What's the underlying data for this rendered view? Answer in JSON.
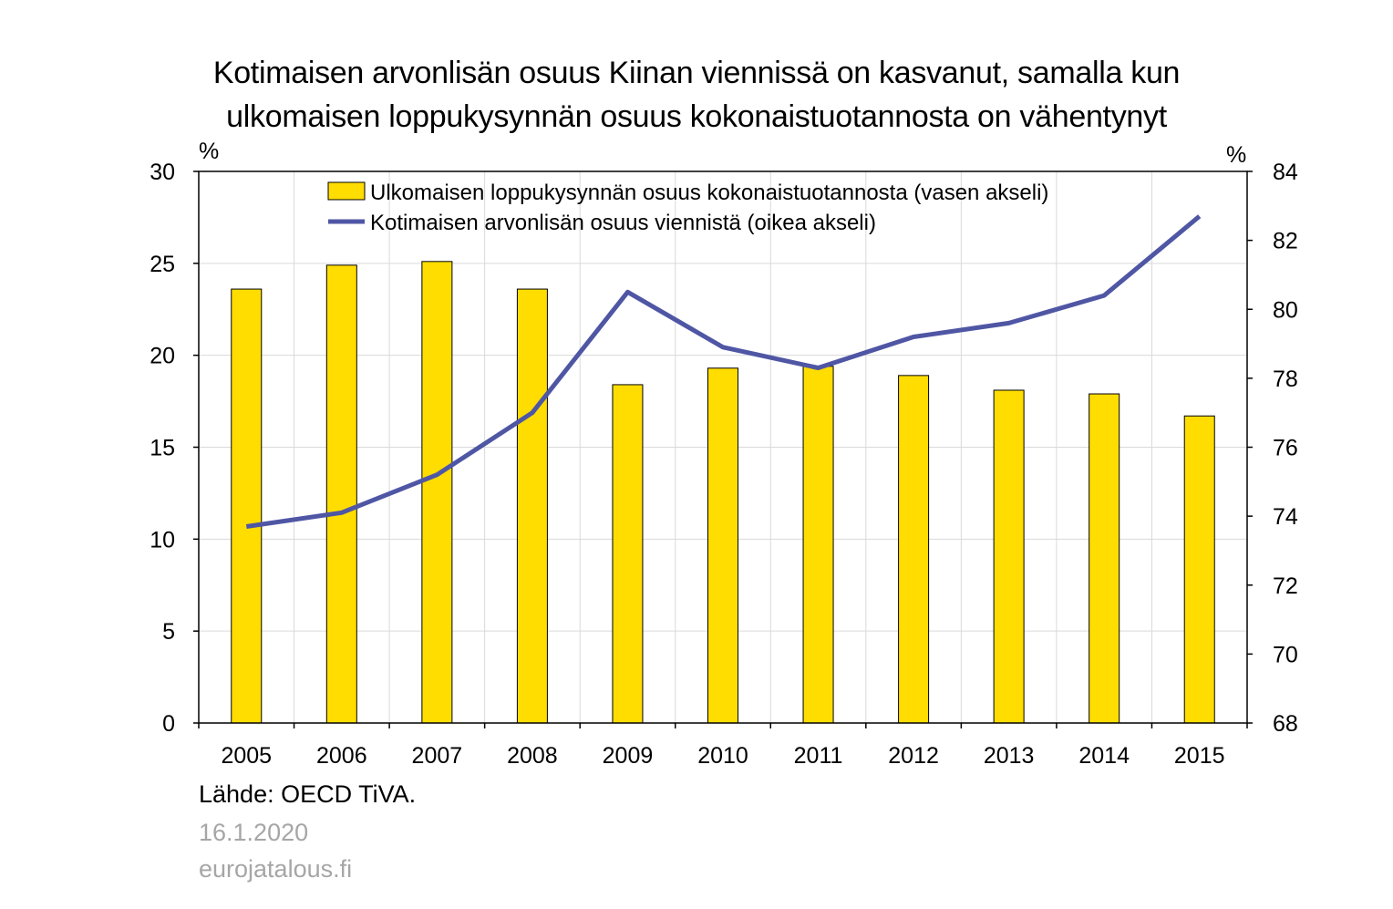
{
  "title": {
    "line1": "Kotimaisen arvonlisän osuus Kiinan viennissä on kasvanut, samalla kun",
    "line2": "ulkomaisen loppukysynnän osuus kokonaistuotannosta on vähentynyt"
  },
  "axis_units": {
    "left": "%",
    "right": "%"
  },
  "footer": {
    "source": "Lähde: OECD TiVA.",
    "date": "16.1.2020",
    "site": "eurojatalous.fi"
  },
  "colors": {
    "bar": "#ffdd00",
    "bar_border": "#000000",
    "line": "#4f56a4",
    "grid": "#d9d9d9"
  },
  "chart_data": {
    "type": "bar+line",
    "categories": [
      "2005",
      "2006",
      "2007",
      "2008",
      "2009",
      "2010",
      "2011",
      "2012",
      "2013",
      "2014",
      "2015"
    ],
    "series": [
      {
        "name": "Ulkomaisen loppukysynnän osuus kokonaistuotannosta (vasen akseli)",
        "type": "bar",
        "axis": "left",
        "values": [
          23.6,
          24.9,
          25.1,
          23.6,
          18.4,
          19.3,
          19.4,
          18.9,
          18.1,
          17.9,
          16.7
        ]
      },
      {
        "name": "Kotimaisen arvonlisän osuus viennistä (oikea akseli)",
        "type": "line",
        "axis": "right",
        "values": [
          73.7,
          74.1,
          75.2,
          77.0,
          80.5,
          78.9,
          78.3,
          79.2,
          79.6,
          80.4,
          82.7
        ]
      }
    ],
    "y_left": {
      "min": 0,
      "max": 30,
      "ticks": [
        0,
        5,
        10,
        15,
        20,
        25,
        30
      ]
    },
    "y_right": {
      "min": 68,
      "max": 84,
      "ticks": [
        68,
        70,
        72,
        74,
        76,
        78,
        80,
        82,
        84
      ]
    },
    "grid": true,
    "legend": "top"
  }
}
